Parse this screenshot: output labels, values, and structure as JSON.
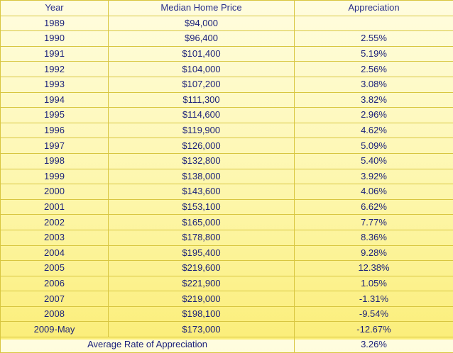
{
  "chart_data": {
    "type": "table",
    "columns": [
      "Year",
      "Median Home Price",
      "Appreciation"
    ],
    "rows": [
      [
        "1989",
        "$94,000",
        ""
      ],
      [
        "1990",
        "$96,400",
        "2.55%"
      ],
      [
        "1991",
        "$101,400",
        "5.19%"
      ],
      [
        "1992",
        "$104,000",
        "2.56%"
      ],
      [
        "1993",
        "$107,200",
        "3.08%"
      ],
      [
        "1994",
        "$111,300",
        "3.82%"
      ],
      [
        "1995",
        "$114,600",
        "2.96%"
      ],
      [
        "1996",
        "$119,900",
        "4.62%"
      ],
      [
        "1997",
        "$126,000",
        "5.09%"
      ],
      [
        "1998",
        "$132,800",
        "5.40%"
      ],
      [
        "1999",
        "$138,000",
        "3.92%"
      ],
      [
        "2000",
        "$143,600",
        "4.06%"
      ],
      [
        "2001",
        "$153,100",
        "6.62%"
      ],
      [
        "2002",
        "$165,000",
        "7.77%"
      ],
      [
        "2003",
        "$178,800",
        "8.36%"
      ],
      [
        "2004",
        "$195,400",
        "9.28%"
      ],
      [
        "2005",
        "$219,600",
        "12.38%"
      ],
      [
        "2006",
        "$221,900",
        "1.05%"
      ],
      [
        "2007",
        "$219,000",
        "-1.31%"
      ],
      [
        "2008",
        "$198,100",
        "-9.54%"
      ],
      [
        "2009-May",
        "$173,000",
        "-12.67%"
      ]
    ],
    "footer": {
      "label": "Average Rate of Appreciation",
      "value": "3.26%"
    }
  }
}
